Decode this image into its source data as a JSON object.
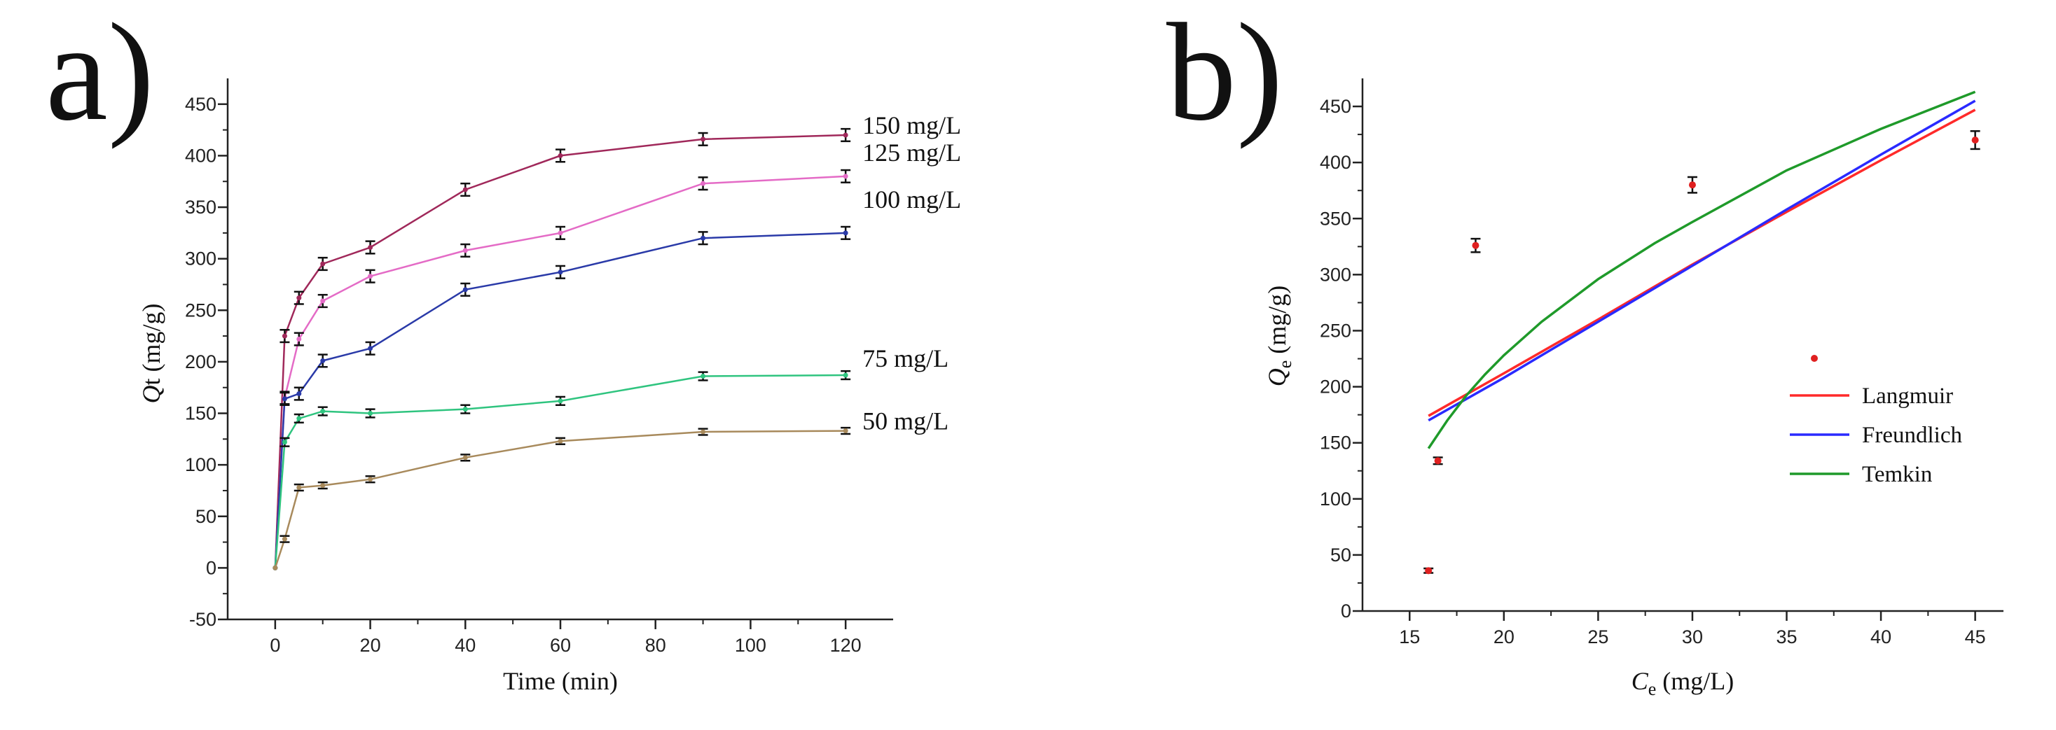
{
  "chart_data": [
    {
      "panel": "a)",
      "type": "line",
      "xlabel": "Time (min)",
      "ylabel_italic": "Q",
      "ylabel_rest": "t (mg/g)",
      "xlim": [
        -10,
        130
      ],
      "ylim": [
        -50,
        475
      ],
      "xticks": [
        0,
        20,
        40,
        60,
        80,
        100,
        120
      ],
      "yticks": [
        -50,
        0,
        50,
        100,
        150,
        200,
        250,
        300,
        350,
        400,
        450
      ],
      "x": [
        0,
        2,
        5,
        10,
        20,
        40,
        60,
        90,
        120
      ],
      "series": [
        {
          "name": "150 mg/L",
          "color": "#a0285a",
          "values": [
            0,
            225,
            262,
            295,
            311,
            367,
            400,
            416,
            420
          ],
          "error": 6
        },
        {
          "name": "125 mg/L",
          "color": "#e46bc6",
          "values": [
            0,
            165,
            222,
            259,
            283,
            308,
            325,
            373,
            380
          ],
          "error": 6
        },
        {
          "name": "100 mg/L",
          "color": "#2a3aa8",
          "values": [
            0,
            164,
            169,
            201,
            213,
            270,
            287,
            320,
            325
          ],
          "error": 6
        },
        {
          "name": "75 mg/L",
          "color": "#2fc47f",
          "values": [
            0,
            122,
            145,
            152,
            150,
            154,
            162,
            186,
            187
          ],
          "error": 4
        },
        {
          "name": "50 mg/L",
          "color": "#a88a5c",
          "values": [
            0,
            28,
            78,
            80,
            86,
            107,
            123,
            132,
            133
          ],
          "error": 3
        }
      ]
    },
    {
      "panel": "b)",
      "type": "scatter",
      "xlabel_italic": "C",
      "xlabel_sub": "e",
      "xlabel_rest": " (mg/L)",
      "ylabel_italic": "Q",
      "ylabel_sub": "e",
      "ylabel_rest": " (mg/g)",
      "xlim": [
        12.5,
        46.5
      ],
      "ylim": [
        0,
        475
      ],
      "xticks": [
        15,
        20,
        25,
        30,
        35,
        40,
        45
      ],
      "yticks": [
        0,
        50,
        100,
        150,
        200,
        250,
        300,
        350,
        400,
        450
      ],
      "points": [
        {
          "x": 16,
          "y": 36,
          "error": 2
        },
        {
          "x": 16.5,
          "y": 134,
          "error": 3
        },
        {
          "x": 18.5,
          "y": 326,
          "error": 6
        },
        {
          "x": 30,
          "y": 380,
          "error": 7
        },
        {
          "x": 45,
          "y": 420,
          "error": 8
        }
      ],
      "point_color": "#e02020",
      "fits": [
        {
          "name": "Langmuir",
          "color": "#ff2a2a",
          "x": [
            16,
            20,
            25,
            30,
            35,
            40,
            45
          ],
          "y": [
            174,
            212,
            260,
            309,
            356,
            402,
            447
          ]
        },
        {
          "name": "Freundlich",
          "color": "#2a2aff",
          "x": [
            16,
            20,
            25,
            30,
            35,
            40,
            45
          ],
          "y": [
            170,
            208,
            258,
            308,
            358,
            407,
            455
          ]
        },
        {
          "name": "Temkin",
          "color": "#1f9a2a",
          "x": [
            16,
            17,
            18,
            19,
            20,
            22,
            25,
            28,
            30,
            35,
            40,
            45
          ],
          "y": [
            145,
            170,
            192,
            211,
            228,
            258,
            296,
            328,
            347,
            393,
            430,
            463
          ]
        }
      ],
      "legend_location": "right-middle"
    }
  ]
}
